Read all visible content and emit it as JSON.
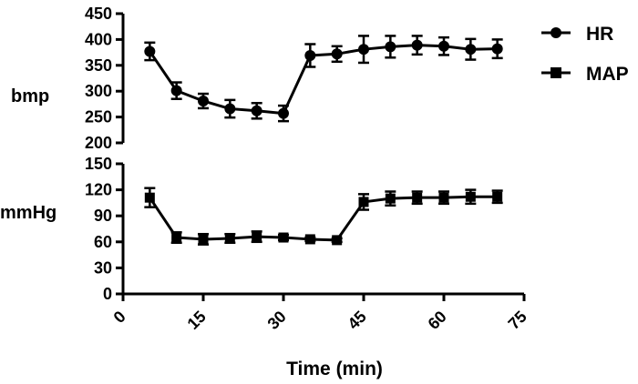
{
  "chart_data": {
    "type": "line",
    "xlabel": "Time (min)",
    "x_ticks": [
      "0",
      "15",
      "30",
      "45",
      "60",
      "75"
    ],
    "xlim": [
      0,
      75
    ],
    "legend": {
      "placement": "top-right",
      "entries": [
        {
          "label": "HR",
          "marker": "circle"
        },
        {
          "label": "MAP",
          "marker": "square"
        }
      ]
    },
    "panels": [
      {
        "ylabel": "bmp",
        "ylim": [
          200,
          450
        ],
        "y_ticks": [
          "200",
          "250",
          "300",
          "350",
          "400",
          "450"
        ],
        "series": [
          {
            "legend_ref": "HR",
            "marker": "circle",
            "x": [
              5,
              10,
              15,
              20,
              25,
              30,
              35,
              40,
              45,
              50,
              55,
              60,
              65,
              70
            ],
            "values": [
              377,
              301,
              281,
              266,
              262,
              257,
              369,
              372,
              381,
              386,
              389,
              387,
              381,
              382
            ],
            "errors": [
              17,
              16,
              14,
              17,
              15,
              15,
              22,
              15,
              26,
              21,
              18,
              17,
              20,
              18
            ]
          }
        ]
      },
      {
        "ylabel": "mmHg",
        "ylim": [
          0,
          150
        ],
        "y_ticks": [
          "0",
          "30",
          "60",
          "90",
          "120",
          "150"
        ],
        "series": [
          {
            "legend_ref": "MAP",
            "marker": "square",
            "x": [
              5,
              10,
              15,
              20,
              25,
              30,
              35,
              40,
              45,
              50,
              55,
              60,
              65,
              70
            ],
            "values": [
              111,
              65,
              63,
              64,
              66,
              65,
              63,
              62,
              106,
              110,
              111,
              111,
              112,
              112
            ],
            "errors": [
              11,
              6,
              6,
              5,
              6,
              3,
              2,
              2,
              9,
              8,
              7,
              7,
              8,
              7
            ]
          }
        ]
      }
    ]
  }
}
